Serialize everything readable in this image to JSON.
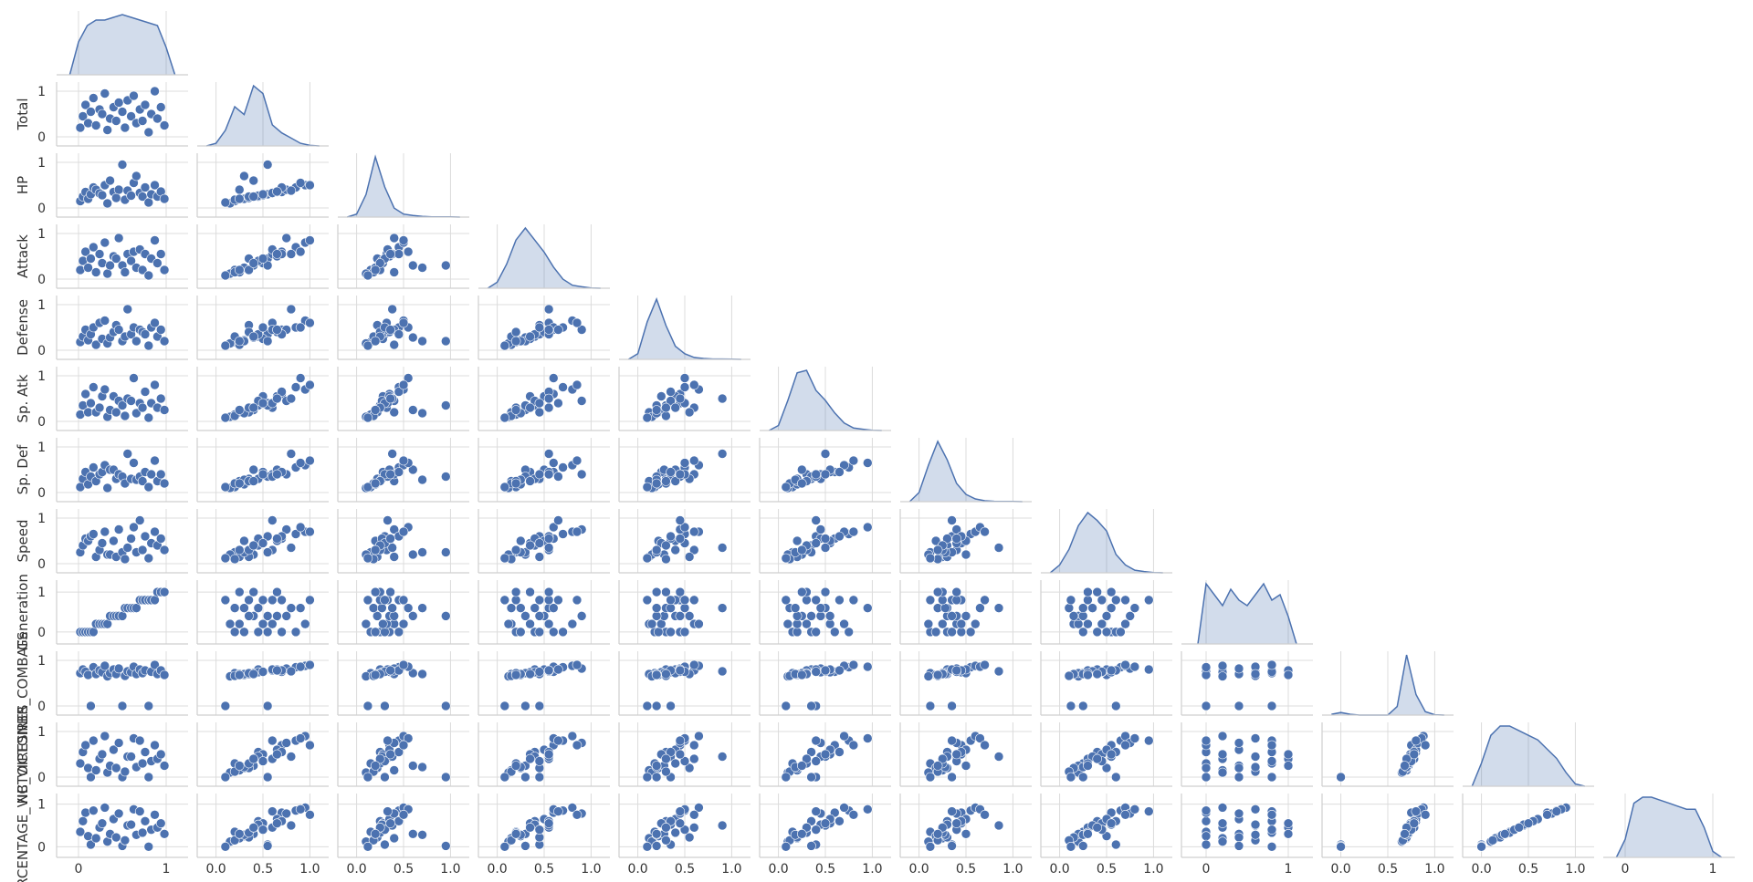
{
  "chart_data": {
    "type": "pairplot",
    "color": "#4c72b0",
    "kde_x": [
      -0.1,
      0,
      0.1,
      0.2,
      0.3,
      0.4,
      0.5,
      0.6,
      0.7,
      0.8,
      0.9,
      1.0,
      1.1
    ],
    "variables": [
      {
        "lim": [
          -0.25,
          1.25
        ],
        "xticks": [
          0,
          1
        ],
        "kde": [
          0,
          0.6,
          0.9,
          1.0,
          1.0,
          1.05,
          1.1,
          1.05,
          1.0,
          0.95,
          0.9,
          0.5,
          0
        ]
      },
      {
        "name": "Total",
        "lim": [
          -0.2,
          1.2
        ],
        "xticks": [
          {
            "value": 0,
            "label": "0.0"
          },
          {
            "value": 0.5,
            "label": "0.5"
          },
          {
            "value": 1,
            "label": "1.0"
          }
        ],
        "yticks": [
          0,
          1
        ],
        "kde": [
          0,
          0.1,
          0.6,
          1.5,
          1.2,
          2.3,
          2.0,
          0.8,
          0.5,
          0.3,
          0.1,
          0.02,
          0
        ]
      },
      {
        "name": "HP",
        "lim": [
          -0.2,
          1.2
        ],
        "xticks": [
          {
            "value": 0,
            "label": "0.0"
          },
          {
            "value": 0.5,
            "label": "0.5"
          },
          {
            "value": 1,
            "label": "1.0"
          }
        ],
        "yticks": [
          0,
          1
        ],
        "kde": [
          0,
          0.2,
          1.5,
          4.0,
          2.0,
          0.6,
          0.2,
          0.1,
          0.05,
          0.02,
          0.01,
          0.01,
          0
        ]
      },
      {
        "name": "Attack",
        "lim": [
          -0.2,
          1.2
        ],
        "xticks": [
          {
            "value": 0,
            "label": "0.0"
          },
          {
            "value": 0.5,
            "label": "0.5"
          },
          {
            "value": 1,
            "label": "1.0"
          }
        ],
        "yticks": [
          0,
          1
        ],
        "kde": [
          0,
          0.2,
          0.8,
          1.6,
          2.0,
          1.6,
          1.2,
          0.7,
          0.3,
          0.1,
          0.05,
          0.01,
          0
        ]
      },
      {
        "name": "Defense",
        "lim": [
          -0.2,
          1.2
        ],
        "xticks": [
          {
            "value": 0,
            "label": "0.0"
          },
          {
            "value": 0.5,
            "label": "0.5"
          },
          {
            "value": 1,
            "label": "1.0"
          }
        ],
        "yticks": [
          0,
          1
        ],
        "kde": [
          0,
          0.3,
          2.0,
          3.2,
          1.8,
          0.7,
          0.3,
          0.1,
          0.05,
          0.02,
          0.02,
          0.01,
          0
        ]
      },
      {
        "name": "Sp. Atk",
        "lim": [
          -0.2,
          1.2
        ],
        "xticks": [
          {
            "value": 0,
            "label": "0.0"
          },
          {
            "value": 0.5,
            "label": "0.5"
          },
          {
            "value": 1,
            "label": "1.0"
          }
        ],
        "yticks": [
          0,
          1
        ],
        "kde": [
          0,
          0.2,
          1.2,
          2.3,
          2.4,
          1.6,
          1.2,
          0.7,
          0.3,
          0.1,
          0.05,
          0.01,
          0
        ]
      },
      {
        "name": "Sp. Def",
        "lim": [
          -0.2,
          1.2
        ],
        "xticks": [
          {
            "value": 0,
            "label": "0.0"
          },
          {
            "value": 0.5,
            "label": "0.5"
          },
          {
            "value": 1,
            "label": "1.0"
          }
        ],
        "yticks": [
          0,
          1
        ],
        "kde": [
          0,
          0.5,
          2.0,
          3.3,
          2.3,
          1.0,
          0.4,
          0.15,
          0.05,
          0.02,
          0.01,
          0.01,
          0
        ]
      },
      {
        "name": "Speed",
        "lim": [
          -0.2,
          1.2
        ],
        "xticks": [
          {
            "value": 0,
            "label": "0.0"
          },
          {
            "value": 0.5,
            "label": "0.5"
          },
          {
            "value": 1,
            "label": "1.0"
          }
        ],
        "yticks": [
          0,
          1
        ],
        "kde": [
          0,
          0.3,
          0.9,
          1.8,
          2.3,
          2.0,
          1.6,
          0.7,
          0.3,
          0.1,
          0.05,
          0.01,
          0
        ]
      },
      {
        "name": "Generation",
        "lim": [
          -0.3,
          1.3
        ],
        "xticks": [
          0,
          1
        ],
        "yticks": [
          0,
          1
        ],
        "kde": [
          0,
          1.1,
          0.9,
          0.7,
          1.0,
          0.8,
          0.7,
          0.9,
          1.1,
          0.8,
          0.9,
          0.5,
          0
        ]
      },
      {
        "name": "NBR_COMBATS",
        "lim": [
          -0.2,
          1.2
        ],
        "xticks": [
          {
            "value": 0,
            "label": "0.0"
          },
          {
            "value": 0.5,
            "label": "0.5"
          },
          {
            "value": 1,
            "label": "1.0"
          }
        ],
        "yticks": [
          0,
          1
        ],
        "kde": [
          0.05,
          0.15,
          0.05,
          0,
          0,
          0,
          0,
          0.5,
          3.5,
          1.2,
          0.2,
          0.02,
          0
        ]
      },
      {
        "name": "NB_VICTOIRES",
        "lim": [
          -0.2,
          1.2
        ],
        "xticks": [
          {
            "value": 0,
            "label": "0.0"
          },
          {
            "value": 0.5,
            "label": "0.5"
          },
          {
            "value": 1,
            "label": "1.0"
          }
        ],
        "yticks": [
          0,
          1
        ],
        "kde": [
          0,
          0.5,
          1.1,
          1.3,
          1.3,
          1.2,
          1.1,
          1.0,
          0.8,
          0.6,
          0.3,
          0.05,
          0
        ]
      },
      {
        "name": "POURCENTAGE_VICTOIRES",
        "lim": [
          -0.25,
          1.25
        ],
        "xticks": [
          0,
          1
        ],
        "yticks": [
          0,
          1
        ],
        "kde": [
          0,
          0.3,
          0.9,
          1.0,
          1.0,
          0.95,
          0.9,
          0.85,
          0.8,
          0.8,
          0.5,
          0.1,
          0
        ]
      }
    ],
    "observations": [
      [
        0.02,
        0.2,
        0.15,
        0.2,
        0.18,
        0.15,
        0.12,
        0.25,
        0.0,
        0.72,
        0.3,
        0.35
      ],
      [
        0.05,
        0.45,
        0.25,
        0.4,
        0.3,
        0.35,
        0.3,
        0.4,
        0.0,
        0.8,
        0.55,
        0.6
      ],
      [
        0.08,
        0.7,
        0.35,
        0.6,
        0.45,
        0.6,
        0.45,
        0.55,
        0.0,
        0.75,
        0.7,
        0.8
      ],
      [
        0.11,
        0.3,
        0.2,
        0.25,
        0.22,
        0.2,
        0.18,
        0.5,
        0.0,
        0.68,
        0.2,
        0.25
      ],
      [
        0.14,
        0.55,
        0.3,
        0.45,
        0.35,
        0.4,
        0.35,
        0.6,
        0.0,
        0.0,
        0.0,
        0.05
      ],
      [
        0.17,
        0.85,
        0.45,
        0.7,
        0.5,
        0.75,
        0.55,
        0.65,
        0.0,
        0.85,
        0.8,
        0.85
      ],
      [
        0.2,
        0.25,
        0.4,
        0.15,
        0.12,
        0.2,
        0.25,
        0.15,
        0.2,
        0.7,
        0.15,
        0.2
      ],
      [
        0.24,
        0.6,
        0.32,
        0.55,
        0.6,
        0.3,
        0.4,
        0.3,
        0.2,
        0.78,
        0.4,
        0.45
      ],
      [
        0.27,
        0.5,
        0.28,
        0.35,
        0.25,
        0.55,
        0.45,
        0.45,
        0.2,
        0.74,
        0.5,
        0.55
      ],
      [
        0.3,
        0.95,
        0.5,
        0.8,
        0.65,
        0.7,
        0.6,
        0.7,
        0.2,
        0.88,
        0.9,
        0.92
      ],
      [
        0.33,
        0.15,
        0.1,
        0.12,
        0.15,
        0.1,
        0.1,
        0.2,
        0.2,
        0.65,
        0.1,
        0.12
      ],
      [
        0.36,
        0.4,
        0.6,
        0.3,
        0.28,
        0.25,
        0.5,
        0.2,
        0.4,
        0.72,
        0.25,
        0.3
      ],
      [
        0.4,
        0.65,
        0.35,
        0.5,
        0.4,
        0.55,
        0.5,
        0.5,
        0.4,
        0.8,
        0.6,
        0.65
      ],
      [
        0.43,
        0.35,
        0.22,
        0.45,
        0.55,
        0.2,
        0.3,
        0.15,
        0.4,
        0.7,
        0.2,
        0.22
      ],
      [
        0.46,
        0.75,
        0.4,
        0.9,
        0.45,
        0.45,
        0.4,
        0.75,
        0.4,
        0.82,
        0.75,
        0.78
      ],
      [
        0.5,
        0.55,
        0.95,
        0.3,
        0.2,
        0.35,
        0.35,
        0.25,
        0.4,
        0.0,
        0.0,
        0.02
      ],
      [
        0.53,
        0.2,
        0.18,
        0.15,
        0.3,
        0.12,
        0.2,
        0.1,
        0.6,
        0.66,
        0.12,
        0.15
      ],
      [
        0.56,
        0.8,
        0.38,
        0.55,
        0.9,
        0.5,
        0.85,
        0.35,
        0.6,
        0.76,
        0.45,
        0.5
      ],
      [
        0.6,
        0.45,
        0.27,
        0.4,
        0.35,
        0.45,
        0.3,
        0.55,
        0.6,
        0.74,
        0.45,
        0.52
      ],
      [
        0.63,
        0.9,
        0.55,
        0.6,
        0.5,
        0.95,
        0.65,
        0.8,
        0.6,
        0.86,
        0.85,
        0.88
      ],
      [
        0.66,
        0.3,
        0.7,
        0.25,
        0.2,
        0.18,
        0.28,
        0.25,
        0.6,
        0.7,
        0.22,
        0.28
      ],
      [
        0.7,
        0.6,
        0.33,
        0.65,
        0.45,
        0.4,
        0.35,
        0.95,
        0.8,
        0.8,
        0.8,
        0.83
      ],
      [
        0.73,
        0.35,
        0.25,
        0.2,
        0.4,
        0.3,
        0.25,
        0.3,
        0.8,
        0.72,
        0.3,
        0.33
      ],
      [
        0.76,
        0.7,
        0.45,
        0.55,
        0.35,
        0.65,
        0.45,
        0.6,
        0.8,
        0.78,
        0.55,
        0.6
      ],
      [
        0.8,
        0.1,
        0.12,
        0.08,
        0.1,
        0.08,
        0.12,
        0.12,
        0.8,
        0.0,
        0.0,
        0.0
      ],
      [
        0.83,
        0.5,
        0.3,
        0.45,
        0.5,
        0.4,
        0.4,
        0.45,
        0.8,
        0.75,
        0.35,
        0.4
      ],
      [
        0.87,
        1.0,
        0.5,
        0.85,
        0.6,
        0.8,
        0.7,
        0.7,
        0.8,
        0.9,
        0.7,
        0.75
      ],
      [
        0.9,
        0.4,
        0.25,
        0.35,
        0.3,
        0.3,
        0.25,
        0.4,
        1.0,
        0.7,
        0.4,
        0.45
      ],
      [
        0.94,
        0.65,
        0.36,
        0.55,
        0.45,
        0.5,
        0.4,
        0.55,
        1.0,
        0.78,
        0.5,
        0.55
      ],
      [
        0.98,
        0.25,
        0.2,
        0.2,
        0.2,
        0.25,
        0.2,
        0.3,
        1.0,
        0.68,
        0.25,
        0.3
      ]
    ]
  }
}
